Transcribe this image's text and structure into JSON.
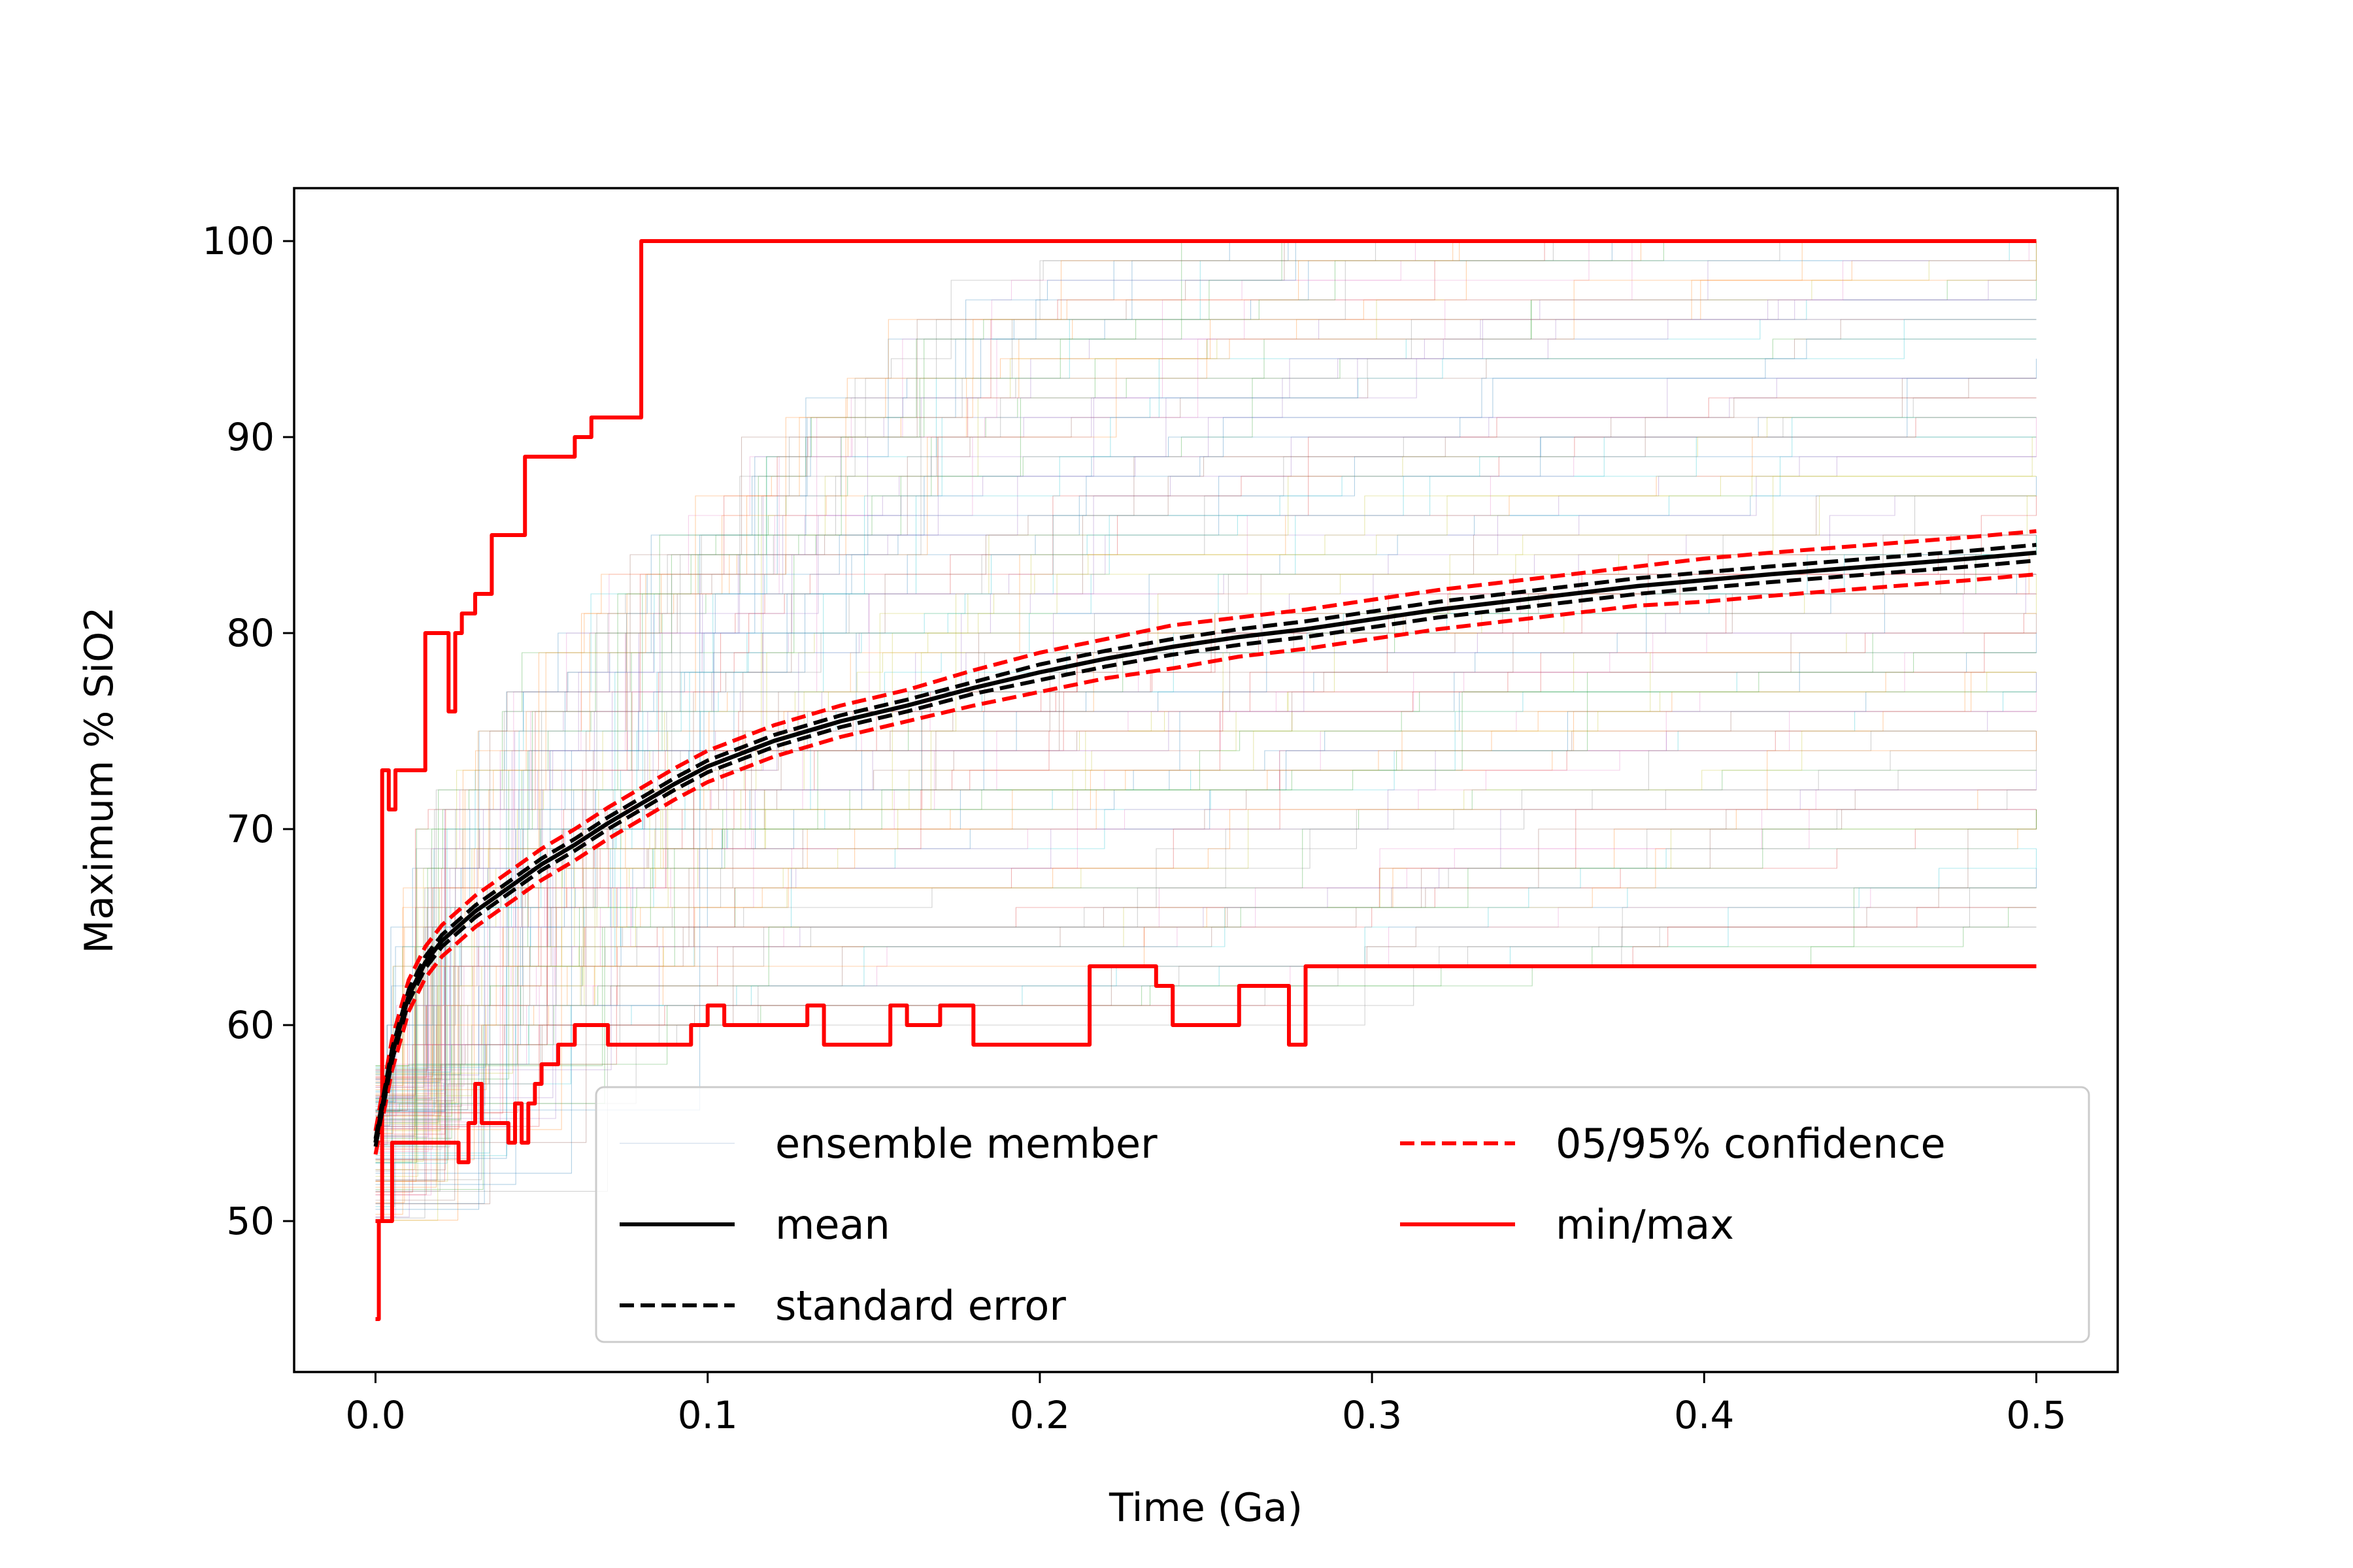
{
  "chart_data": {
    "type": "line",
    "xlabel": "Time (Ga)",
    "ylabel": "Maximum % SiO2",
    "xlim": [
      -0.0245,
      0.5245
    ],
    "ylim": [
      42.3,
      102.7
    ],
    "xticks": [
      0.0,
      0.1,
      0.2,
      0.3,
      0.4,
      0.5
    ],
    "xtick_labels": [
      "0.0",
      "0.1",
      "0.2",
      "0.3",
      "0.4",
      "0.5"
    ],
    "yticks": [
      50,
      60,
      70,
      80,
      90,
      100
    ],
    "ytick_labels": [
      "50",
      "60",
      "70",
      "80",
      "90",
      "100"
    ],
    "grid": false,
    "legend_position": "lower-right",
    "legend": [
      {
        "label": "ensemble member",
        "color": "#c8d8e8",
        "style": "thin"
      },
      {
        "label": "mean",
        "color": "#000000",
        "style": "solid"
      },
      {
        "label": "standard error",
        "color": "#000000",
        "style": "dashed"
      },
      {
        "label": "05/95% confidence",
        "color": "#ff0000",
        "style": "dashed"
      },
      {
        "label": "min/max",
        "color": "#ff0000",
        "style": "solid"
      }
    ],
    "ensemble_colors": [
      "#1f77b4",
      "#ff7f0e",
      "#2ca02c",
      "#d62728",
      "#9467bd",
      "#8c564b",
      "#e377c2",
      "#7f7f7f",
      "#bcbd22",
      "#17becf"
    ],
    "series": [
      {
        "name": "mean",
        "color": "#000000",
        "dash": "none",
        "x": [
          0.0,
          0.005,
          0.01,
          0.015,
          0.02,
          0.03,
          0.04,
          0.05,
          0.06,
          0.07,
          0.08,
          0.09,
          0.1,
          0.12,
          0.14,
          0.16,
          0.18,
          0.2,
          0.22,
          0.24,
          0.26,
          0.28,
          0.3,
          0.32,
          0.35,
          0.38,
          0.4,
          0.42,
          0.45,
          0.48,
          0.5
        ],
        "y": [
          54.0,
          58.5,
          61.5,
          63.2,
          64.3,
          65.8,
          67.0,
          68.2,
          69.2,
          70.3,
          71.3,
          72.3,
          73.2,
          74.5,
          75.5,
          76.3,
          77.2,
          78.0,
          78.7,
          79.3,
          79.8,
          80.2,
          80.7,
          81.2,
          81.8,
          82.4,
          82.7,
          83.0,
          83.4,
          83.8,
          84.1
        ]
      },
      {
        "name": "standard error (upper)",
        "color": "#000000",
        "dash": "dashed",
        "x": [
          0.0,
          0.005,
          0.01,
          0.015,
          0.02,
          0.03,
          0.04,
          0.05,
          0.06,
          0.07,
          0.08,
          0.09,
          0.1,
          0.12,
          0.14,
          0.16,
          0.18,
          0.2,
          0.22,
          0.24,
          0.26,
          0.28,
          0.3,
          0.32,
          0.35,
          0.38,
          0.4,
          0.42,
          0.45,
          0.48,
          0.5
        ],
        "y": [
          54.2,
          58.8,
          61.8,
          63.5,
          64.6,
          66.1,
          67.3,
          68.5,
          69.5,
          70.6,
          71.6,
          72.6,
          73.5,
          74.8,
          75.8,
          76.6,
          77.5,
          78.4,
          79.1,
          79.7,
          80.2,
          80.6,
          81.1,
          81.6,
          82.2,
          82.8,
          83.1,
          83.4,
          83.8,
          84.2,
          84.5
        ]
      },
      {
        "name": "standard error (lower)",
        "color": "#000000",
        "dash": "dashed",
        "x": [
          0.0,
          0.005,
          0.01,
          0.015,
          0.02,
          0.03,
          0.04,
          0.05,
          0.06,
          0.07,
          0.08,
          0.09,
          0.1,
          0.12,
          0.14,
          0.16,
          0.18,
          0.2,
          0.22,
          0.24,
          0.26,
          0.28,
          0.3,
          0.32,
          0.35,
          0.38,
          0.4,
          0.42,
          0.45,
          0.48,
          0.5
        ],
        "y": [
          53.8,
          58.2,
          61.2,
          62.9,
          64.0,
          65.5,
          66.7,
          67.9,
          68.9,
          70.0,
          71.0,
          72.0,
          72.9,
          74.2,
          75.2,
          76.0,
          76.9,
          77.6,
          78.3,
          78.9,
          79.4,
          79.8,
          80.3,
          80.8,
          81.4,
          82.0,
          82.3,
          82.6,
          83.0,
          83.4,
          83.7
        ]
      },
      {
        "name": "05/95% confidence (upper)",
        "color": "#ff0000",
        "dash": "dashed",
        "x": [
          0.0,
          0.005,
          0.01,
          0.015,
          0.02,
          0.03,
          0.04,
          0.05,
          0.06,
          0.07,
          0.08,
          0.09,
          0.1,
          0.12,
          0.14,
          0.16,
          0.18,
          0.2,
          0.22,
          0.24,
          0.26,
          0.28,
          0.3,
          0.32,
          0.35,
          0.38,
          0.4,
          0.42,
          0.45,
          0.48,
          0.5
        ],
        "y": [
          54.6,
          59.3,
          62.3,
          64.0,
          65.1,
          66.6,
          67.8,
          69.0,
          70.0,
          71.1,
          72.1,
          73.1,
          74.0,
          75.3,
          76.3,
          77.1,
          78.1,
          79.0,
          79.7,
          80.4,
          80.8,
          81.2,
          81.7,
          82.2,
          82.8,
          83.4,
          83.8,
          84.1,
          84.5,
          84.9,
          85.2
        ]
      },
      {
        "name": "05/95% confidence (lower)",
        "color": "#ff0000",
        "dash": "dashed",
        "x": [
          0.0,
          0.005,
          0.01,
          0.015,
          0.02,
          0.03,
          0.04,
          0.05,
          0.06,
          0.07,
          0.08,
          0.09,
          0.1,
          0.12,
          0.14,
          0.16,
          0.18,
          0.2,
          0.22,
          0.24,
          0.26,
          0.28,
          0.3,
          0.32,
          0.35,
          0.38,
          0.4,
          0.42,
          0.45,
          0.48,
          0.5
        ],
        "y": [
          53.4,
          57.7,
          60.7,
          62.4,
          63.5,
          65.0,
          66.2,
          67.4,
          68.4,
          69.5,
          70.5,
          71.5,
          72.4,
          73.7,
          74.7,
          75.5,
          76.3,
          77.0,
          77.7,
          78.2,
          78.8,
          79.2,
          79.7,
          80.2,
          80.8,
          81.4,
          81.6,
          81.9,
          82.3,
          82.7,
          83.0
        ]
      },
      {
        "name": "max",
        "color": "#ff0000",
        "dash": "none",
        "step": true,
        "x": [
          0.0,
          0.002,
          0.004,
          0.006,
          0.008,
          0.015,
          0.022,
          0.024,
          0.026,
          0.03,
          0.032,
          0.035,
          0.045,
          0.06,
          0.065,
          0.07,
          0.08,
          0.5
        ],
        "y": [
          50.0,
          73.0,
          71.0,
          73.0,
          73.0,
          80.0,
          76.0,
          80.0,
          81.0,
          82.0,
          82.0,
          85.0,
          89.0,
          90.0,
          91.0,
          91.0,
          100.0,
          100.0
        ]
      },
      {
        "name": "min",
        "color": "#ff0000",
        "dash": "none",
        "step": true,
        "x": [
          0.0,
          0.001,
          0.002,
          0.005,
          0.01,
          0.025,
          0.028,
          0.03,
          0.032,
          0.04,
          0.042,
          0.044,
          0.046,
          0.048,
          0.05,
          0.055,
          0.06,
          0.065,
          0.07,
          0.095,
          0.1,
          0.105,
          0.11,
          0.13,
          0.135,
          0.155,
          0.16,
          0.17,
          0.18,
          0.2,
          0.215,
          0.225,
          0.235,
          0.24,
          0.26,
          0.265,
          0.275,
          0.28,
          0.5
        ],
        "y": [
          45.0,
          50.0,
          50.0,
          54.0,
          54.0,
          53.0,
          55.0,
          57.0,
          55.0,
          54.0,
          56.0,
          54.0,
          56.0,
          57.0,
          58.0,
          59.0,
          60.0,
          60.0,
          59.0,
          60.0,
          61.0,
          60.0,
          60.0,
          61.0,
          59.0,
          61.0,
          60.0,
          61.0,
          59.0,
          59.0,
          63.0,
          63.0,
          62.0,
          60.0,
          62.0,
          62.0,
          59.0,
          63.0,
          63.0
        ]
      }
    ]
  }
}
